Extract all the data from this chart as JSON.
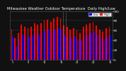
{
  "title": "Milwaukee Weather Outdoor Temperature  Daily High/Low",
  "title_fontsize": 3.8,
  "background_color": "#111111",
  "plot_bg_color": "#111111",
  "highs": [
    62,
    45,
    55,
    72,
    68,
    65,
    68,
    75,
    72,
    75,
    80,
    82,
    78,
    85,
    88,
    85,
    70,
    68,
    62,
    65,
    60,
    55,
    68,
    72,
    75,
    78,
    70,
    62,
    58,
    65,
    68
  ],
  "lows": [
    48,
    28,
    42,
    52,
    50,
    48,
    50,
    55,
    52,
    58,
    60,
    62,
    58,
    62,
    65,
    62,
    50,
    48,
    45,
    48,
    42,
    40,
    48,
    52,
    55,
    58,
    50,
    45,
    42,
    48,
    50
  ],
  "high_color": "#ff0000",
  "low_color": "#0000ff",
  "dashed_line_x": [
    15.5,
    16.5
  ],
  "ylim": [
    0,
    100
  ],
  "yticks": [
    0,
    20,
    40,
    60,
    80,
    100
  ],
  "ytick_labels": [
    "0",
    "20",
    "40",
    "60",
    "80",
    "100"
  ],
  "xlabel_fontsize": 2.5,
  "ylabel_fontsize": 3.0,
  "legend_labels": [
    "Low",
    "High"
  ],
  "legend_colors": [
    "#0000ff",
    "#ff0000"
  ],
  "title_color": "#ffffff",
  "tick_color": "#ffffff",
  "grid_color": "#444444"
}
